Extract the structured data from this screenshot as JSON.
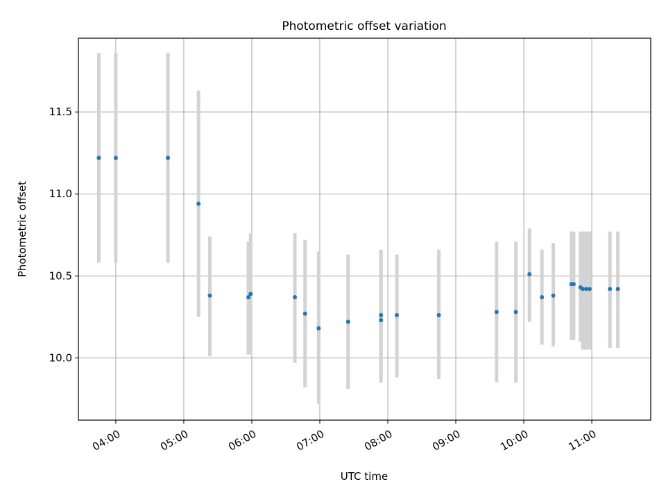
{
  "chart_data": {
    "type": "scatter",
    "title": "Photometric offset variation",
    "xlabel": "UTC time",
    "ylabel": "Photometric offset",
    "x_ticks": [
      "04:00",
      "05:00",
      "06:00",
      "07:00",
      "08:00",
      "09:00",
      "10:00",
      "11:00"
    ],
    "y_ticks": [
      "10.0",
      "10.5",
      "11.0",
      "11.5"
    ],
    "xlim": [
      "03:27",
      "11:52"
    ],
    "ylim": [
      9.62,
      11.95
    ],
    "grid": true,
    "point_color": "#1f77b4",
    "errorbar_color": "#d3d3d3",
    "points": [
      {
        "x": "03:45",
        "y": 11.22,
        "err_low": 10.58,
        "err_high": 11.86
      },
      {
        "x": "04:00",
        "y": 11.22,
        "err_low": 10.58,
        "err_high": 11.86
      },
      {
        "x": "04:46",
        "y": 11.22,
        "err_low": 10.58,
        "err_high": 11.86
      },
      {
        "x": "05:13",
        "y": 10.94,
        "err_low": 10.25,
        "err_high": 11.63
      },
      {
        "x": "05:23",
        "y": 10.38,
        "err_low": 10.01,
        "err_high": 10.74
      },
      {
        "x": "05:57",
        "y": 10.37,
        "err_low": 10.02,
        "err_high": 10.71
      },
      {
        "x": "05:59",
        "y": 10.39,
        "err_low": 10.02,
        "err_high": 10.76
      },
      {
        "x": "06:38",
        "y": 10.37,
        "err_low": 9.97,
        "err_high": 10.76
      },
      {
        "x": "06:47",
        "y": 10.27,
        "err_low": 9.82,
        "err_high": 10.72
      },
      {
        "x": "06:59",
        "y": 10.18,
        "err_low": 9.72,
        "err_high": 10.65
      },
      {
        "x": "07:25",
        "y": 10.22,
        "err_low": 9.81,
        "err_high": 10.63
      },
      {
        "x": "07:54",
        "y": 10.26,
        "err_low": 9.85,
        "err_high": 10.66
      },
      {
        "x": "07:54",
        "y": 10.23,
        "err_low": 9.85,
        "err_high": 10.66
      },
      {
        "x": "08:08",
        "y": 10.26,
        "err_low": 9.88,
        "err_high": 10.63
      },
      {
        "x": "08:45",
        "y": 10.26,
        "err_low": 9.87,
        "err_high": 10.66
      },
      {
        "x": "09:36",
        "y": 10.28,
        "err_low": 9.85,
        "err_high": 10.71
      },
      {
        "x": "09:53",
        "y": 10.28,
        "err_low": 9.85,
        "err_high": 10.71
      },
      {
        "x": "10:05",
        "y": 10.51,
        "err_low": 10.22,
        "err_high": 10.79
      },
      {
        "x": "10:16",
        "y": 10.37,
        "err_low": 10.08,
        "err_high": 10.66
      },
      {
        "x": "10:26",
        "y": 10.38,
        "err_low": 10.07,
        "err_high": 10.7
      },
      {
        "x": "10:42",
        "y": 10.45,
        "err_low": 10.11,
        "err_high": 10.77
      },
      {
        "x": "10:44",
        "y": 10.45,
        "err_low": 10.11,
        "err_high": 10.77
      },
      {
        "x": "10:50",
        "y": 10.43,
        "err_low": 10.1,
        "err_high": 10.77
      },
      {
        "x": "10:52",
        "y": 10.42,
        "err_low": 10.05,
        "err_high": 10.77
      },
      {
        "x": "10:55",
        "y": 10.42,
        "err_low": 10.05,
        "err_high": 10.77
      },
      {
        "x": "10:58",
        "y": 10.42,
        "err_low": 10.05,
        "err_high": 10.77
      },
      {
        "x": "11:16",
        "y": 10.42,
        "err_low": 10.06,
        "err_high": 10.77
      },
      {
        "x": "11:23",
        "y": 10.42,
        "err_low": 10.06,
        "err_high": 10.77
      }
    ]
  }
}
